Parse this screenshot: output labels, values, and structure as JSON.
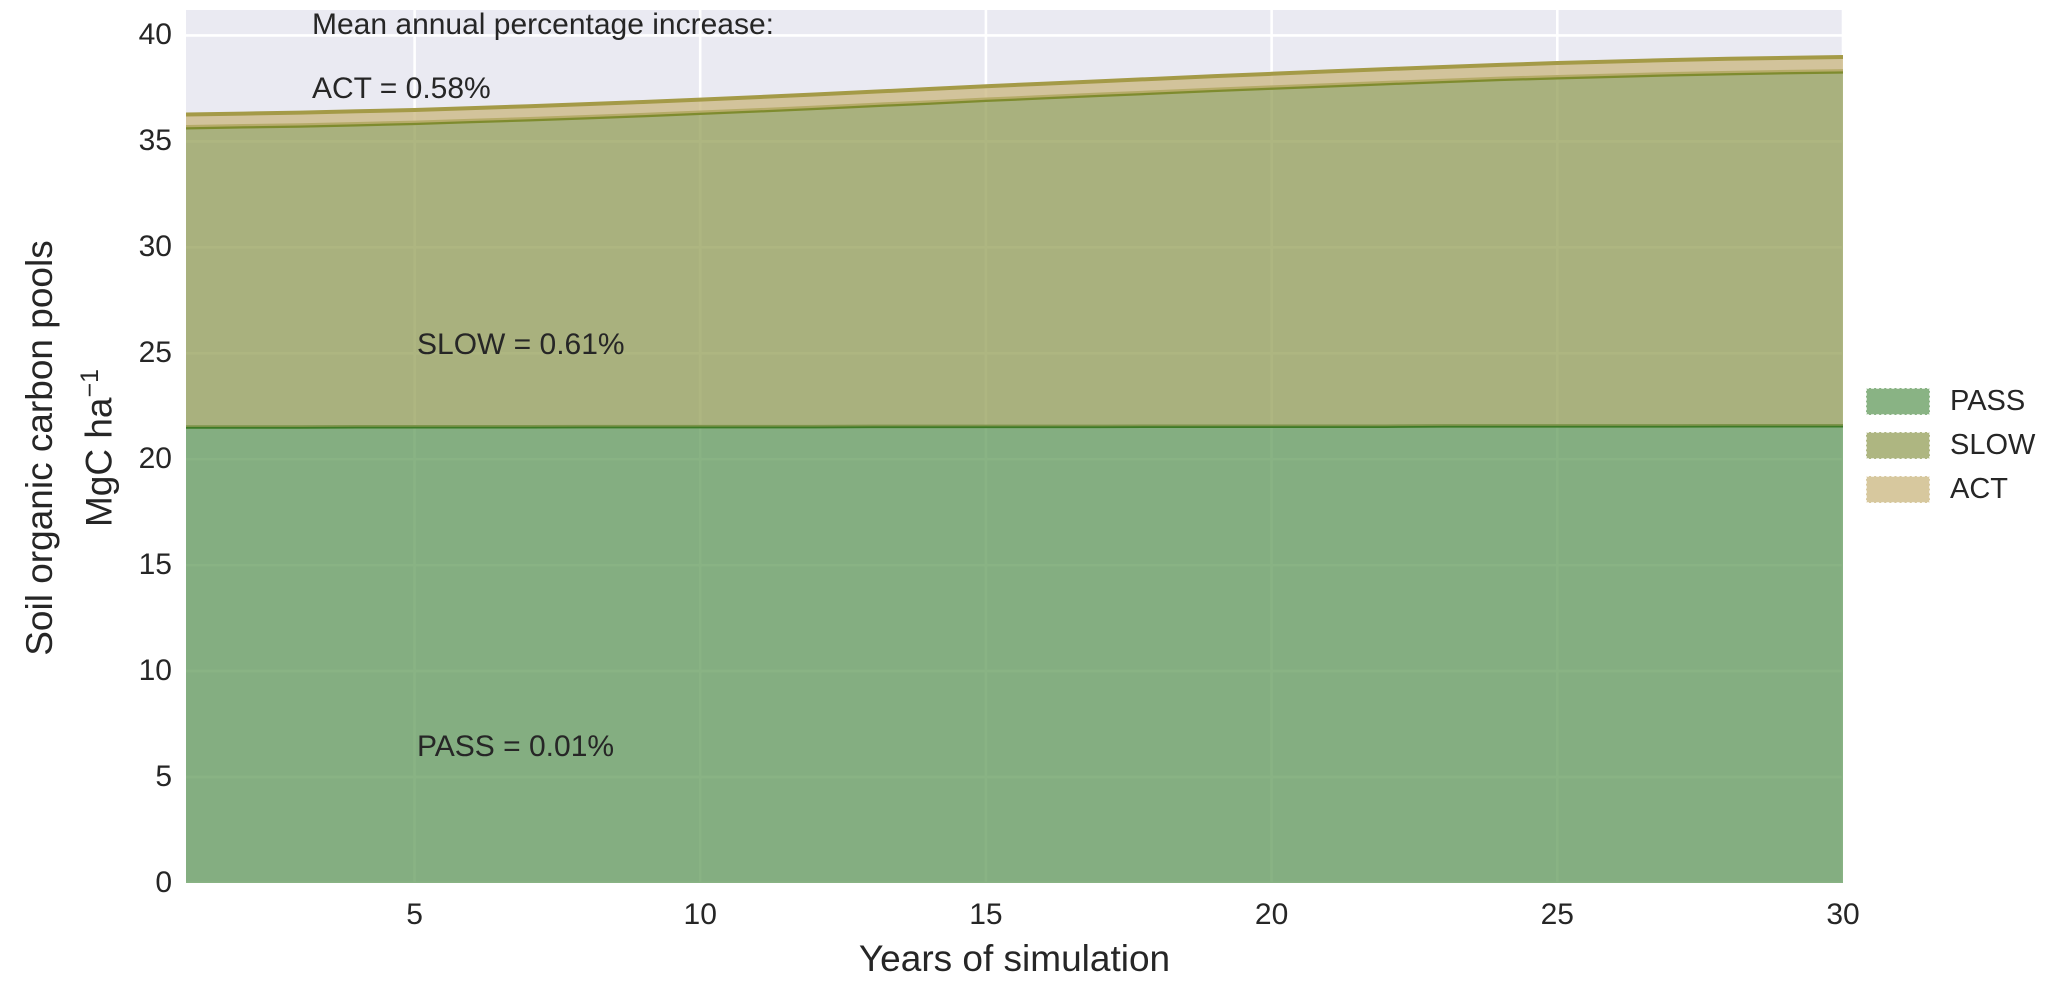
{
  "figure": {
    "background": "#ffffff",
    "plot_background": "#eaeaf2",
    "grid_color": "#ffffff",
    "text_color": "#262626"
  },
  "chart_data": {
    "type": "area",
    "stacked": true,
    "xlabel": "Years of simulation",
    "ylabel_line1": "Soil organic carbon pools",
    "ylabel_line2_base": "MgC ha",
    "ylabel_line2_sup": "−1",
    "xlim": [
      1,
      30
    ],
    "ylim": [
      0,
      41.2
    ],
    "xticks": [
      5,
      10,
      15,
      20,
      25,
      30
    ],
    "yticks": [
      0,
      5,
      10,
      15,
      20,
      25,
      30,
      35,
      40
    ],
    "grid": true,
    "legend_position": "right-outside",
    "x": [
      1,
      2,
      3,
      4,
      5,
      6,
      7,
      8,
      9,
      10,
      11,
      12,
      13,
      14,
      15,
      16,
      17,
      18,
      19,
      20,
      21,
      22,
      23,
      24,
      25,
      26,
      27,
      28,
      29,
      30
    ],
    "series": [
      {
        "name": "PASS",
        "annual_increase_pct": 0.01,
        "fill": "rgba(98,153,91,0.75)",
        "fill_on_bg": "#84ad81",
        "edge": "#3d7a27",
        "edge_width": 3.5,
        "cumulative_top": [
          21.52,
          21.52,
          21.52,
          21.53,
          21.53,
          21.53,
          21.53,
          21.54,
          21.54,
          21.54,
          21.54,
          21.54,
          21.55,
          21.55,
          21.55,
          21.55,
          21.55,
          21.56,
          21.56,
          21.56,
          21.56,
          21.56,
          21.57,
          21.57,
          21.57,
          21.57,
          21.57,
          21.58,
          21.58,
          21.58
        ]
      },
      {
        "name": "SLOW",
        "annual_increase_pct": 0.61,
        "fill": "rgba(147,157,87,0.75)",
        "fill_on_bg": "#a9b07e",
        "edge": "#7e8b2e",
        "edge_width": 4.5,
        "cumulative_top": [
          35.67,
          35.71,
          35.75,
          35.81,
          35.87,
          35.96,
          36.04,
          36.14,
          36.24,
          36.35,
          36.46,
          36.58,
          36.71,
          36.83,
          36.96,
          37.08,
          37.2,
          37.31,
          37.43,
          37.54,
          37.64,
          37.75,
          37.85,
          37.95,
          38.03,
          38.1,
          38.17,
          38.22,
          38.27,
          38.3
        ]
      },
      {
        "name": "ACT",
        "annual_increase_pct": 0.58,
        "fill": "rgba(202,181,126,0.75)",
        "fill_on_bg": "#d2c29b",
        "edge": "#a49a47",
        "edge_width": 4,
        "cumulative_top": [
          36.27,
          36.31,
          36.36,
          36.42,
          36.48,
          36.57,
          36.66,
          36.76,
          36.86,
          36.97,
          37.09,
          37.21,
          37.34,
          37.47,
          37.6,
          37.72,
          37.84,
          37.96,
          38.08,
          38.19,
          38.3,
          38.41,
          38.51,
          38.61,
          38.7,
          38.77,
          38.84,
          38.9,
          38.94,
          38.98
        ]
      }
    ],
    "annotations": [
      {
        "text": "Mean annual percentage increase:"
      },
      {
        "text": "ACT = 0.58%"
      },
      {
        "text": "SLOW = 0.61%"
      },
      {
        "text": "PASS = 0.01%"
      }
    ]
  },
  "legend": {
    "items": [
      {
        "label": "PASS"
      },
      {
        "label": "SLOW"
      },
      {
        "label": "ACT"
      }
    ]
  }
}
